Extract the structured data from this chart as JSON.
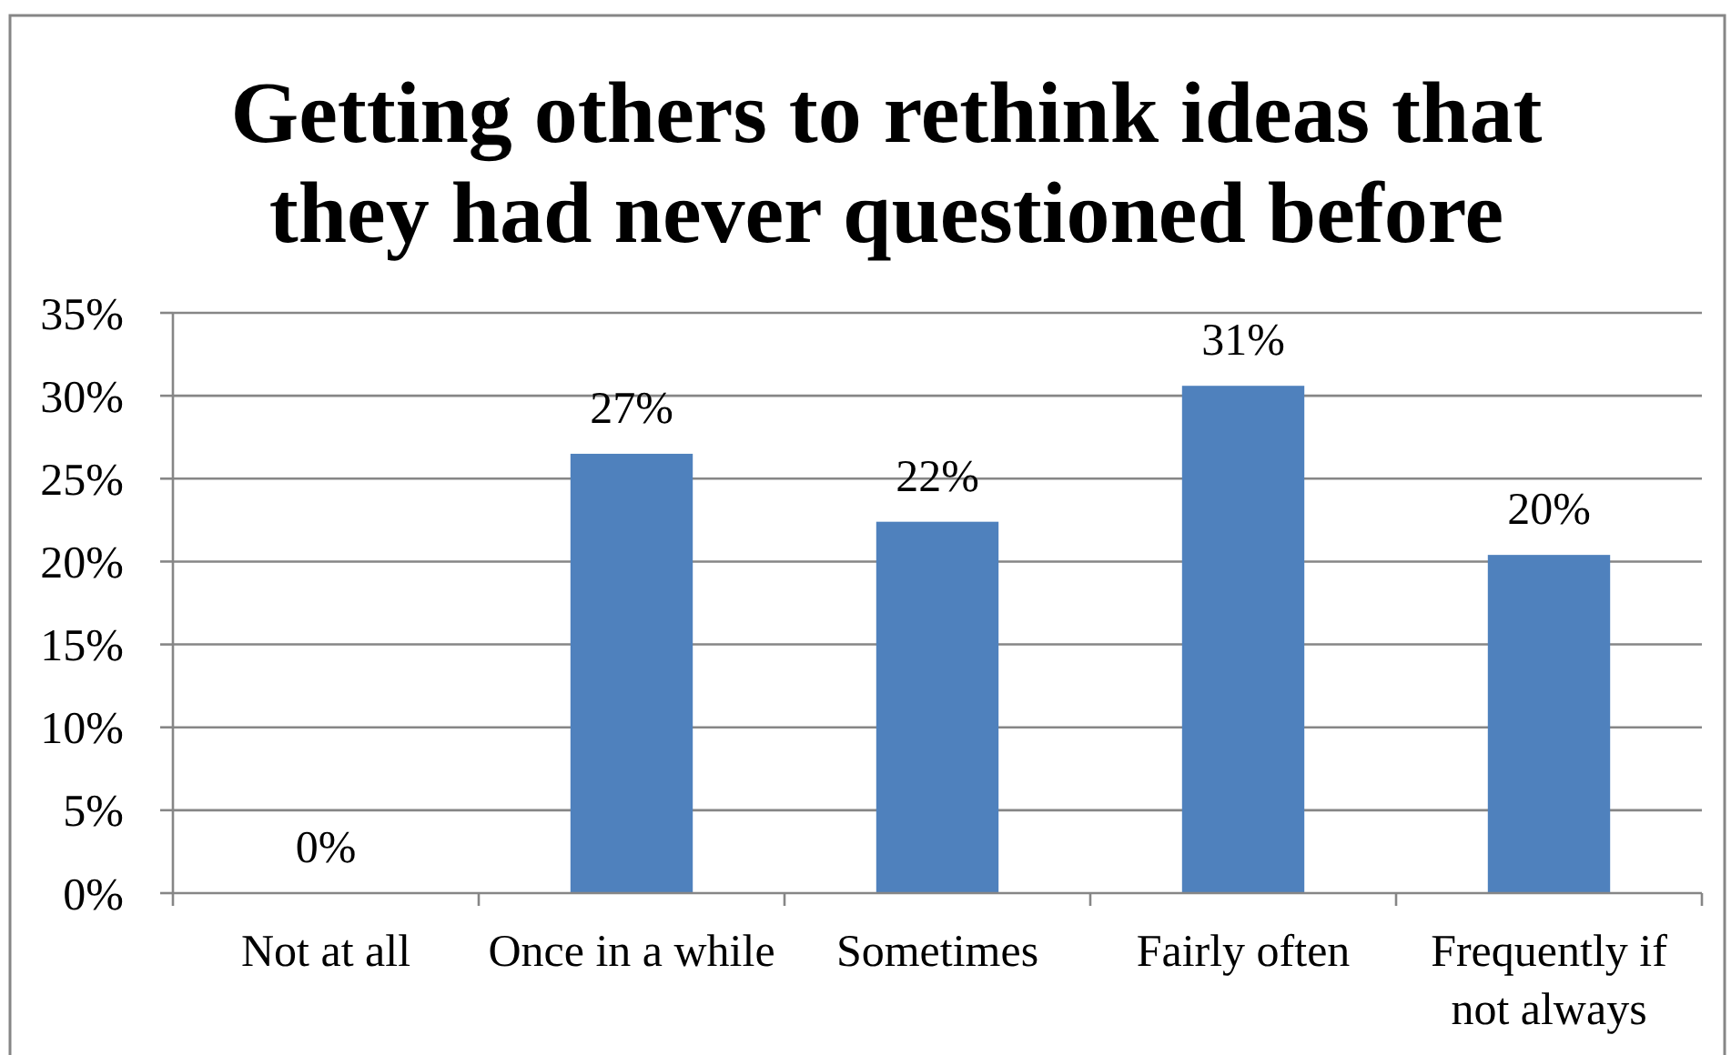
{
  "chart_data": {
    "type": "bar",
    "title": "Getting others to rethink ideas that they had never questioned before",
    "categories": [
      "Not at all",
      "Once in a while",
      "Sometimes",
      "Fairly often",
      "Frequently if not always"
    ],
    "values": [
      0,
      26.5,
      22.4,
      30.6,
      20.4
    ],
    "value_labels": [
      "0%",
      "27%",
      "22%",
      "31%",
      "20%"
    ],
    "color": "#4f81bd",
    "ylim": [
      0,
      35
    ],
    "yticks": [
      {
        "value": 0,
        "label": "0%"
      },
      {
        "value": 5,
        "label": "5%"
      },
      {
        "value": 10,
        "label": "10%"
      },
      {
        "value": 15,
        "label": "15%"
      },
      {
        "value": 20,
        "label": "20%"
      },
      {
        "value": 25,
        "label": "25%"
      },
      {
        "value": 30,
        "label": "30%"
      },
      {
        "value": 35,
        "label": "35%"
      }
    ],
    "grid": "y"
  }
}
